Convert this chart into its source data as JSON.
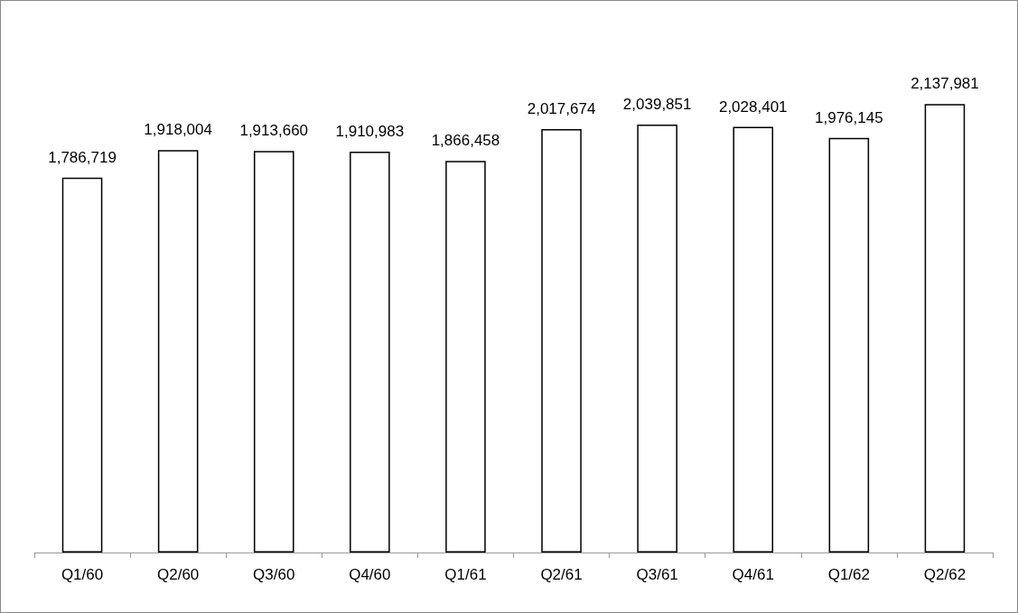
{
  "chart_data": {
    "type": "bar",
    "categories": [
      "Q1/60",
      "Q2/60",
      "Q3/60",
      "Q4/60",
      "Q1/61",
      "Q2/61",
      "Q3/61",
      "Q4/61",
      "Q1/62",
      "Q2/62"
    ],
    "values": [
      1786719,
      1918004,
      1913660,
      1910983,
      1866458,
      2017674,
      2039851,
      2028401,
      1976145,
      2137981
    ],
    "value_labels": [
      "1,786,719",
      "1,918,004",
      "1,913,660",
      "1,910,983",
      "1,866,458",
      "2,017,674",
      "2,039,851",
      "2,028,401",
      "1,976,145",
      "2,137,981"
    ],
    "color": "#ffffff"
  }
}
